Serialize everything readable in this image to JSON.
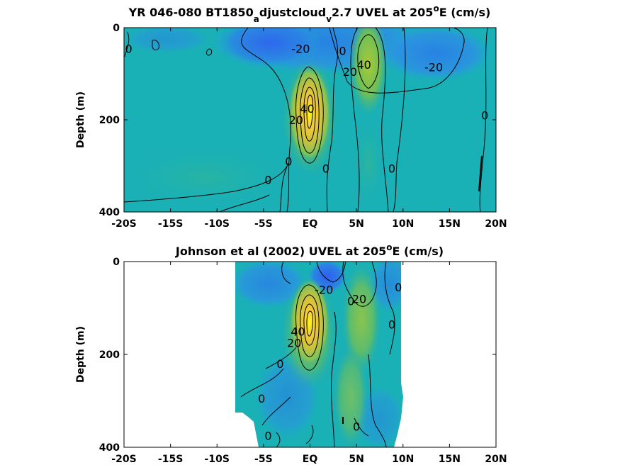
{
  "chart_data": [
    {
      "type": "heatmap",
      "title_main": "YR 046-080 BT1850",
      "title_sub1": "a",
      "title_mid": "djustcloud",
      "title_sub2": "v",
      "title_end": "2.7 UVEL at 205",
      "title_sup": "o",
      "title_tail": "E (cm/s)",
      "ylabel": "Depth (m)",
      "xlim": [
        -20,
        20
      ],
      "ylim": [
        400,
        0
      ],
      "x_ticks": [
        -20,
        -15,
        -10,
        -5,
        0,
        5,
        10,
        15,
        20
      ],
      "x_tick_labels": [
        "-20S",
        "-15S",
        "-10S",
        "-5S",
        "EQ",
        "5N",
        "10N",
        "15N",
        "20N"
      ],
      "y_ticks": [
        0,
        200,
        400
      ],
      "y_tick_labels": [
        "0",
        "200",
        "400"
      ],
      "features": [
        {
          "name": "undercurrent core",
          "lat": 0,
          "depth": 160,
          "value": 100
        },
        {
          "name": "countercurrent",
          "lat": 6,
          "depth": 70,
          "value": 45
        },
        {
          "name": "westward jet",
          "lat": -3,
          "depth": 40,
          "value": -30
        },
        {
          "name": "westward jet",
          "lat": 14,
          "depth": 30,
          "value": -35
        }
      ],
      "contour_labels": [
        {
          "text": "0",
          "lat": -19.5,
          "depth": 45
        },
        {
          "text": "-20",
          "lat": -1,
          "depth": 45
        },
        {
          "text": "0",
          "lat": 3.5,
          "depth": 50
        },
        {
          "text": "40",
          "lat": 5.8,
          "depth": 80
        },
        {
          "text": "20",
          "lat": 4.3,
          "depth": 95
        },
        {
          "text": "-20",
          "lat": 13.3,
          "depth": 85
        },
        {
          "text": "40",
          "lat": -0.3,
          "depth": 175
        },
        {
          "text": "20",
          "lat": -1.5,
          "depth": 200
        },
        {
          "text": "0",
          "lat": 18.8,
          "depth": 190
        },
        {
          "text": "0",
          "lat": -2.3,
          "depth": 290
        },
        {
          "text": "0",
          "lat": 1.7,
          "depth": 305
        },
        {
          "text": "0",
          "lat": 8.8,
          "depth": 305
        },
        {
          "text": "0",
          "lat": -4.5,
          "depth": 330
        }
      ]
    },
    {
      "type": "heatmap",
      "title_main": "Johnson et al (2002) UVEL at 205",
      "title_sup": "o",
      "title_tail": "E (cm/s)",
      "ylabel": "Depth (m)",
      "xlim": [
        -20,
        20
      ],
      "ylim": [
        400,
        0
      ],
      "data_extent_lat": [
        -8,
        10
      ],
      "x_ticks": [
        -20,
        -15,
        -10,
        -5,
        0,
        5,
        10,
        15,
        20
      ],
      "x_tick_labels": [
        "-20S",
        "-15S",
        "-10S",
        "-5S",
        "EQ",
        "5N",
        "10N",
        "15N",
        "20N"
      ],
      "y_ticks": [
        0,
        200,
        400
      ],
      "y_tick_labels": [
        "0",
        "200",
        "400"
      ],
      "features": [
        {
          "name": "undercurrent core",
          "lat": -0.3,
          "depth": 140,
          "value": 100
        },
        {
          "name": "countercurrent",
          "lat": 5.5,
          "depth": 120,
          "value": 25
        },
        {
          "name": "westward jet",
          "lat": 1.5,
          "depth": 25,
          "value": -40
        }
      ],
      "contour_labels": [
        {
          "text": "-20",
          "lat": 1.5,
          "depth": 60
        },
        {
          "text": "20",
          "lat": 5.3,
          "depth": 80
        },
        {
          "text": "0",
          "lat": 9.5,
          "depth": 55
        },
        {
          "text": "0",
          "lat": 4.4,
          "depth": 85
        },
        {
          "text": "40",
          "lat": -1.3,
          "depth": 150
        },
        {
          "text": "20",
          "lat": -1.7,
          "depth": 175
        },
        {
          "text": "0",
          "lat": 8.8,
          "depth": 135
        },
        {
          "text": "0",
          "lat": -3.2,
          "depth": 220
        },
        {
          "text": "0",
          "lat": -5.2,
          "depth": 295
        },
        {
          "text": "0",
          "lat": -4.5,
          "depth": 375
        },
        {
          "text": "0",
          "lat": 5.0,
          "depth": 355
        }
      ]
    }
  ]
}
